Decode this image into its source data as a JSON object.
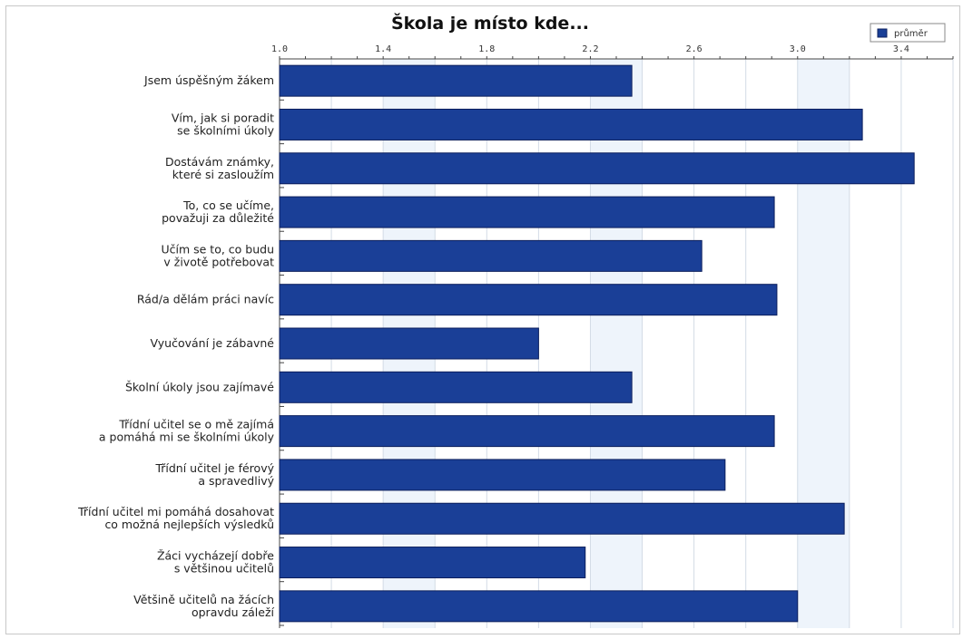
{
  "chart_data": {
    "type": "bar",
    "orientation": "horizontal",
    "title": "Škola je místo kde...",
    "xlim": [
      1.0,
      3.6
    ],
    "ticks": [
      "1.0",
      "1.4",
      "1.8",
      "2.2",
      "2.6",
      "3.0",
      "3.4"
    ],
    "tick_values": [
      1.0,
      1.4,
      1.8,
      2.2,
      2.6,
      3.0,
      3.4
    ],
    "grid": true,
    "legend_position": "top-right",
    "series": [
      {
        "name": "průměr",
        "color": "#1a3f97",
        "values": [
          2.36,
          3.25,
          3.45,
          2.91,
          2.63,
          2.92,
          2.0,
          2.36,
          2.91,
          2.72,
          3.18,
          2.18,
          3.0
        ]
      }
    ],
    "categories": [
      [
        "Jsem úspěšným žákem"
      ],
      [
        "Vím, jak si poradit",
        "se školními úkoly"
      ],
      [
        "Dostávám známky,",
        "které si zasloužím"
      ],
      [
        "To, co se učíme,",
        "považuji za důležité"
      ],
      [
        "Učím se to, co budu",
        "v životě potřebovat"
      ],
      [
        "Rád/a dělám práci navíc"
      ],
      [
        "Vyučování je zábavné"
      ],
      [
        "Školní úkoly jsou zajímavé"
      ],
      [
        "Třídní učitel se o mě zajímá",
        "a pomáhá mi se školními úkoly"
      ],
      [
        "Třídní učitel je férový",
        "a spravedlivý"
      ],
      [
        "Třídní učitel mi pomáhá dosahovat",
        "co možná nejlepších výsledků"
      ],
      [
        "Žáci vycházejí dobře",
        "s většinou učitelů"
      ],
      [
        "Většině učitelů na žácích",
        "opravdu záleží"
      ]
    ]
  }
}
